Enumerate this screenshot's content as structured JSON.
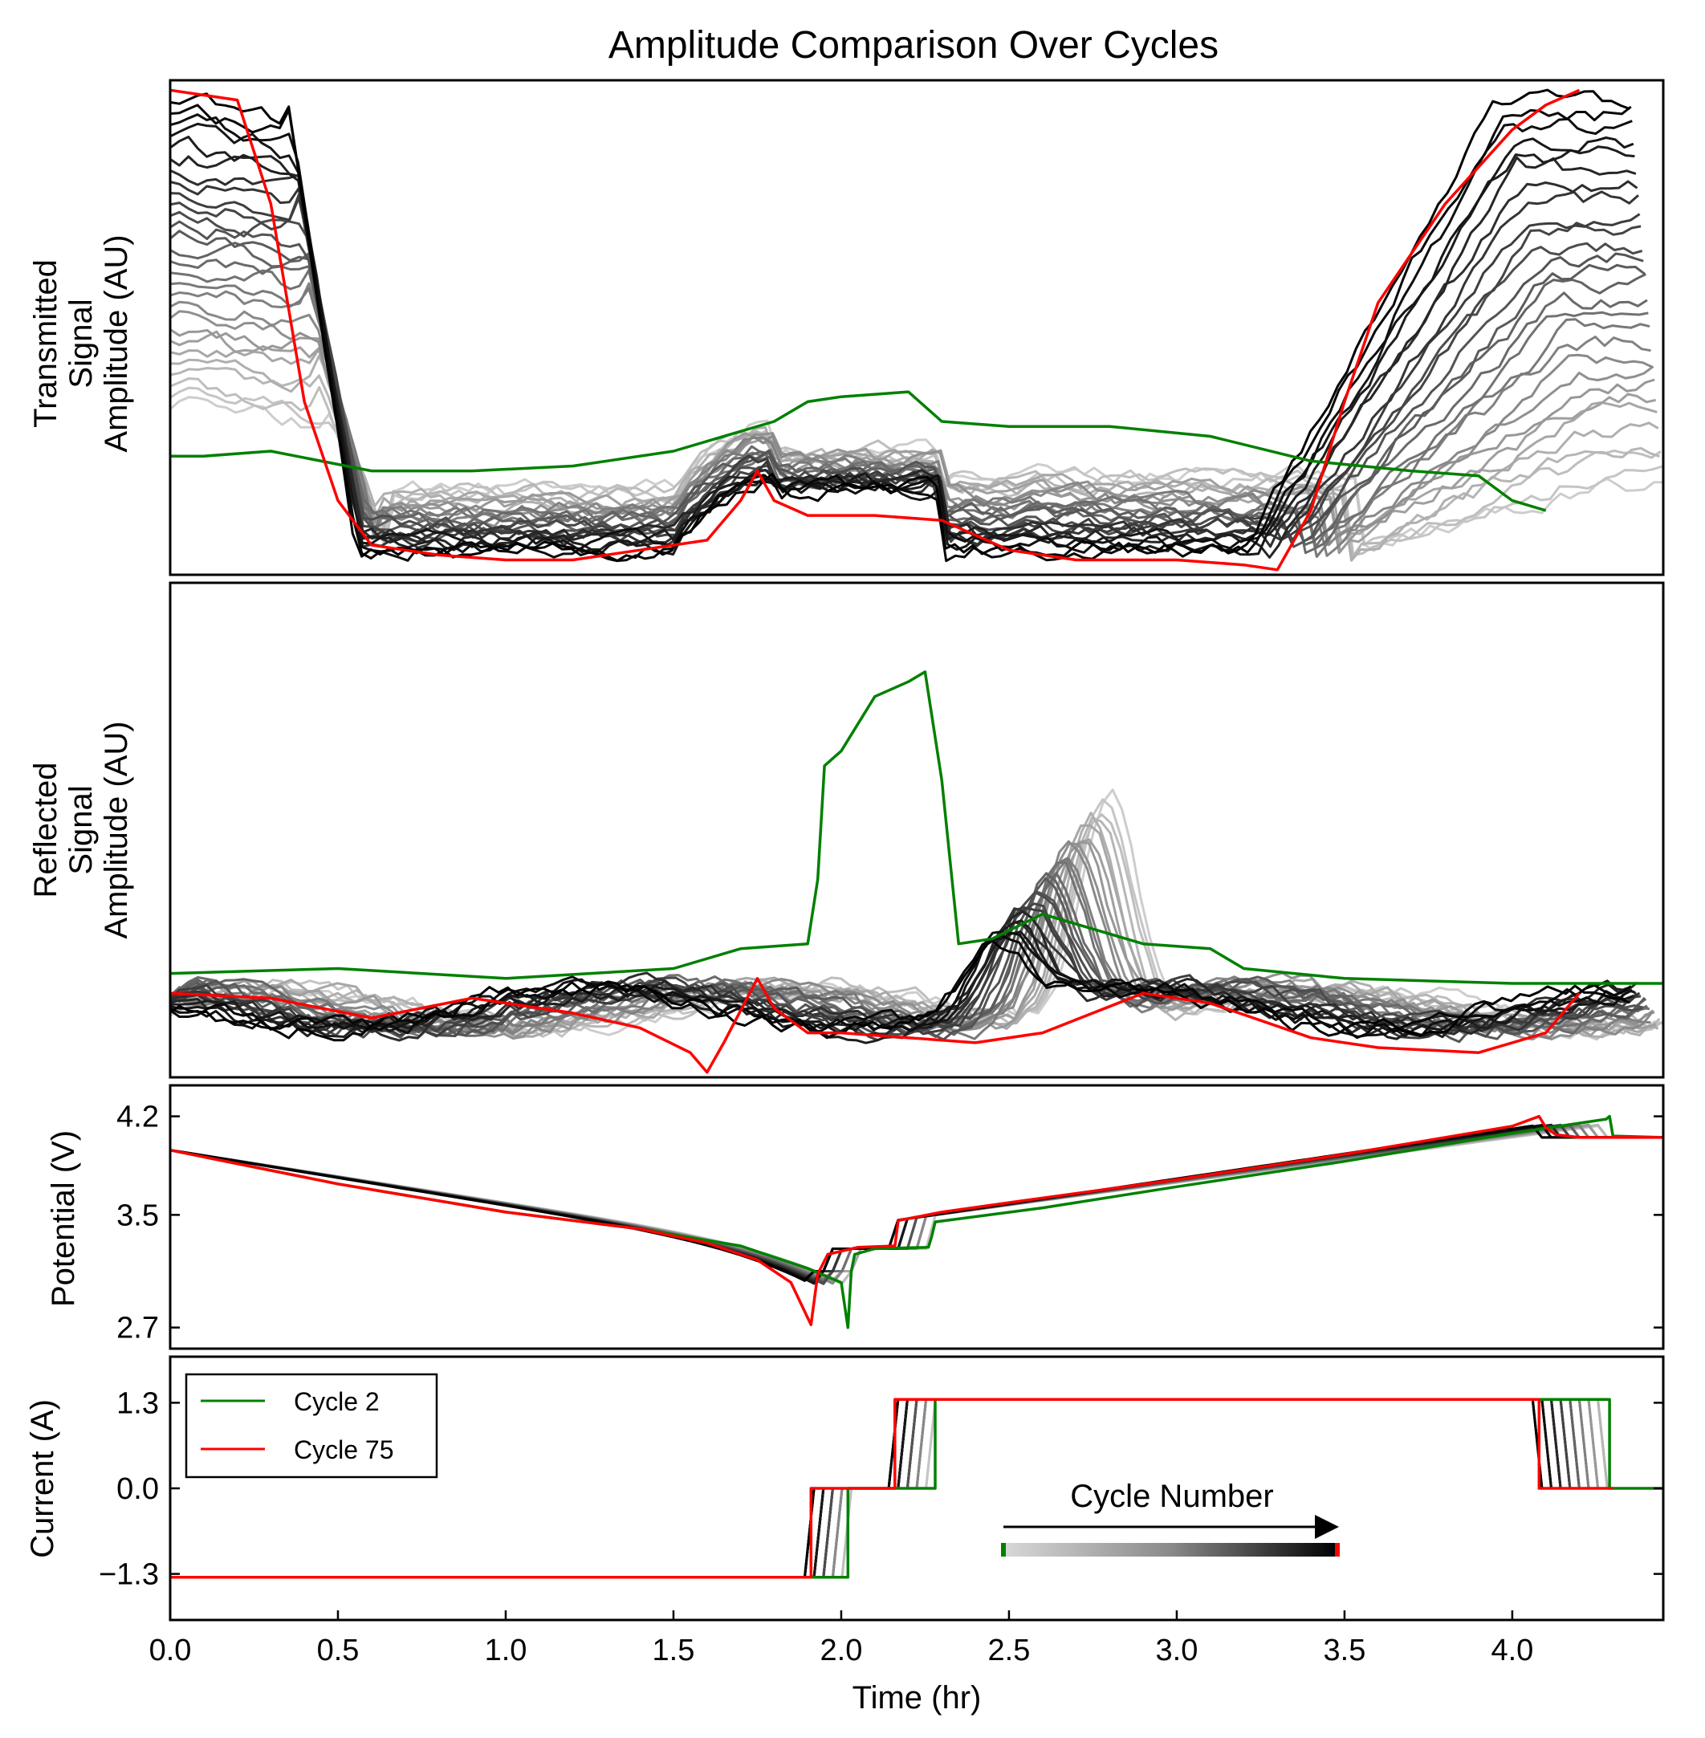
{
  "chart_data": [
    {
      "id": "transmitted",
      "type": "line",
      "title": "Amplitude Comparison Over Cycles",
      "ylabel_lines": [
        "Transmitted",
        "Signal",
        "Amplitude (AU)"
      ],
      "xlim": [
        0,
        4.45
      ],
      "ylim": [
        0,
        1
      ],
      "yticks": [],
      "highlight_series": [
        {
          "name": "Cycle 2",
          "color": "#008000",
          "x": [
            0,
            0.1,
            0.3,
            0.6,
            0.9,
            1.2,
            1.5,
            1.8,
            1.9,
            2.0,
            2.2,
            2.3,
            2.5,
            2.8,
            3.1,
            3.4,
            3.7,
            3.9,
            4.0,
            4.1
          ],
          "y": [
            0.24,
            0.24,
            0.25,
            0.21,
            0.21,
            0.22,
            0.25,
            0.31,
            0.35,
            0.36,
            0.37,
            0.31,
            0.3,
            0.3,
            0.28,
            0.23,
            0.21,
            0.2,
            0.15,
            0.13
          ]
        },
        {
          "name": "Cycle 75",
          "color": "#ff0000",
          "x": [
            0,
            0.1,
            0.2,
            0.3,
            0.4,
            0.5,
            0.6,
            0.8,
            1.0,
            1.2,
            1.4,
            1.6,
            1.7,
            1.75,
            1.8,
            1.9,
            2.1,
            2.3,
            2.5,
            2.7,
            3.0,
            3.2,
            3.3,
            3.4,
            3.5,
            3.6,
            3.8,
            4.0,
            4.1,
            4.2
          ],
          "y": [
            0.98,
            0.97,
            0.96,
            0.75,
            0.35,
            0.15,
            0.06,
            0.04,
            0.03,
            0.03,
            0.05,
            0.07,
            0.15,
            0.21,
            0.15,
            0.12,
            0.12,
            0.11,
            0.05,
            0.03,
            0.03,
            0.02,
            0.01,
            0.13,
            0.35,
            0.55,
            0.75,
            0.9,
            0.95,
            0.98
          ]
        }
      ]
    },
    {
      "id": "reflected",
      "type": "line",
      "ylabel_lines": [
        "Reflected",
        "Signal",
        "Amplitude (AU)"
      ],
      "xlim": [
        0,
        4.45
      ],
      "ylim": [
        0,
        1
      ],
      "yticks": [],
      "highlight_series": [
        {
          "name": "Cycle 2",
          "color": "#008000",
          "x": [
            0,
            0.5,
            1.0,
            1.5,
            1.7,
            1.9,
            1.93,
            1.95,
            2.0,
            2.1,
            2.2,
            2.25,
            2.3,
            2.35,
            2.45,
            2.6,
            2.9,
            3.1,
            3.2,
            3.5,
            4.0,
            4.45
          ],
          "y": [
            0.21,
            0.22,
            0.2,
            0.22,
            0.26,
            0.27,
            0.4,
            0.63,
            0.66,
            0.77,
            0.8,
            0.82,
            0.6,
            0.27,
            0.28,
            0.33,
            0.27,
            0.26,
            0.22,
            0.2,
            0.19,
            0.19
          ]
        },
        {
          "name": "Cycle 75",
          "color": "#ff0000",
          "x": [
            0,
            0.3,
            0.6,
            0.9,
            1.2,
            1.4,
            1.55,
            1.6,
            1.65,
            1.75,
            1.8,
            1.9,
            2.0,
            2.2,
            2.4,
            2.6,
            2.9,
            3.1,
            3.4,
            3.6,
            3.9,
            4.1,
            4.2
          ],
          "y": [
            0.17,
            0.16,
            0.12,
            0.16,
            0.13,
            0.1,
            0.05,
            0.01,
            0.07,
            0.2,
            0.14,
            0.09,
            0.09,
            0.08,
            0.07,
            0.09,
            0.17,
            0.15,
            0.08,
            0.06,
            0.05,
            0.09,
            0.17
          ]
        }
      ]
    },
    {
      "id": "potential",
      "type": "line",
      "ylabel": "Potential (V)",
      "xlim": [
        0,
        4.45
      ],
      "ylim": [
        2.55,
        4.42
      ],
      "yticks": [
        2.7,
        3.5,
        4.2
      ],
      "ytick_labels": [
        "2.7",
        "3.5",
        "4.2"
      ],
      "highlight_series": [
        {
          "name": "Cycle 2",
          "color": "#008000",
          "x": [
            0,
            0.5,
            1.0,
            1.4,
            1.7,
            1.9,
            2.0,
            2.02,
            2.03,
            2.04,
            2.1,
            2.26,
            2.27,
            2.28,
            2.6,
            3.0,
            3.5,
            4.0,
            4.28,
            4.29,
            4.3,
            4.45
          ],
          "y": [
            3.96,
            3.72,
            3.52,
            3.4,
            3.28,
            3.12,
            3.02,
            2.7,
            3.1,
            3.22,
            3.26,
            3.27,
            3.35,
            3.45,
            3.55,
            3.7,
            3.88,
            4.08,
            4.18,
            4.2,
            4.06,
            4.05
          ]
        },
        {
          "name": "Cycle 75",
          "color": "#ff0000",
          "x": [
            0,
            0.5,
            1.0,
            1.4,
            1.6,
            1.75,
            1.85,
            1.91,
            1.93,
            1.96,
            2.05,
            2.16,
            2.17,
            2.3,
            2.6,
            3.0,
            3.5,
            4.0,
            4.08,
            4.1,
            4.13,
            4.2,
            4.45
          ],
          "y": [
            3.96,
            3.72,
            3.52,
            3.4,
            3.3,
            3.18,
            3.02,
            2.72,
            3.08,
            3.22,
            3.27,
            3.28,
            3.46,
            3.52,
            3.62,
            3.75,
            3.93,
            4.13,
            4.2,
            4.12,
            4.07,
            4.05,
            4.05
          ]
        }
      ]
    },
    {
      "id": "current",
      "type": "line",
      "ylabel": "Current (A)",
      "xlabel": "Time (hr)",
      "xlim": [
        0,
        4.45
      ],
      "ylim": [
        -2.0,
        2.0
      ],
      "yticks": [
        -1.3,
        0.0,
        1.3
      ],
      "ytick_labels": [
        "−1.3",
        "0.0",
        "1.3"
      ],
      "xticks": [
        0.0,
        0.5,
        1.0,
        1.5,
        2.0,
        2.5,
        3.0,
        3.5,
        4.0
      ],
      "xtick_labels": [
        "0.0",
        "0.5",
        "1.0",
        "1.5",
        "2.0",
        "2.5",
        "3.0",
        "3.5",
        "4.0"
      ],
      "highlight_series": [
        {
          "name": "Cycle 2",
          "color": "#008000",
          "x": [
            0,
            2.02,
            2.02,
            2.28,
            2.28,
            4.29,
            4.29,
            4.45
          ],
          "y": [
            -1.35,
            -1.35,
            0,
            0,
            1.35,
            1.35,
            0,
            0
          ]
        },
        {
          "name": "Cycle 75",
          "color": "#ff0000",
          "x": [
            0,
            1.91,
            1.91,
            2.16,
            2.16,
            4.08,
            4.08,
            4.3
          ],
          "y": [
            -1.35,
            -1.35,
            0,
            0,
            1.35,
            1.35,
            0,
            0
          ]
        }
      ],
      "legend": {
        "placement": "upper-left",
        "entries": [
          {
            "label": "Cycle 2",
            "color": "#008000"
          },
          {
            "label": "Cycle 75",
            "color": "#ff0000"
          }
        ]
      },
      "colorbar": {
        "label": "Cycle Number",
        "from_color": "#d0d0d0",
        "to_color": "#000000",
        "start_marker": "#008000",
        "end_marker": "#ff0000",
        "x_range": [
          2.5,
          3.5
        ]
      }
    }
  ]
}
